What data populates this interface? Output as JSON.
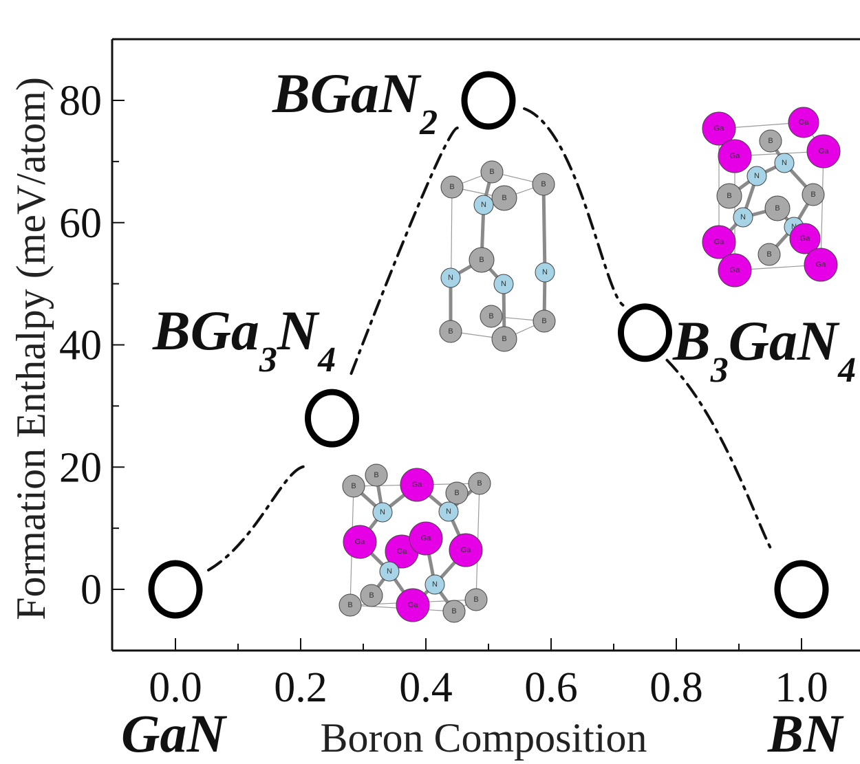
{
  "chart_data": {
    "type": "scatter",
    "title": "",
    "xlabel": "Boron Composition",
    "ylabel": "Formation Enthalpy (meV/atom)",
    "xlim": [
      -0.1,
      1.1
    ],
    "ylim": [
      -10,
      90
    ],
    "x_ticks": [
      "0.0",
      "0.2",
      "0.4",
      "0.6",
      "0.8",
      "1.0"
    ],
    "y_ticks": [
      "0",
      "20",
      "40",
      "60",
      "80"
    ],
    "end_labels": {
      "left": "GaN",
      "right": "BN"
    },
    "grid": false,
    "marker": "open-circle",
    "line_style": "dash-dot",
    "points": [
      {
        "x": 0.0,
        "y": 0,
        "label": "",
        "sub1": "",
        "label2": "",
        "sub2": ""
      },
      {
        "x": 0.25,
        "y": 28,
        "label": "BGa",
        "sub1": "3",
        "label2": "N",
        "sub2": "4"
      },
      {
        "x": 0.5,
        "y": 80,
        "label": "BGaN",
        "sub1": "2",
        "label2": "",
        "sub2": ""
      },
      {
        "x": 0.75,
        "y": 42,
        "label": "B",
        "sub1": "3",
        "label2": "GaN",
        "sub2": "4"
      },
      {
        "x": 1.0,
        "y": 0,
        "label": "",
        "sub1": "",
        "label2": "",
        "sub2": ""
      }
    ]
  },
  "atom_labels": {
    "boron": "B",
    "nitrogen": "N",
    "gallium": "Ga"
  },
  "colors": {
    "boron": "#a8a8a8",
    "nitrogen": "#a6d4e6",
    "gallium": "#e600e6",
    "axis": "#111111"
  }
}
